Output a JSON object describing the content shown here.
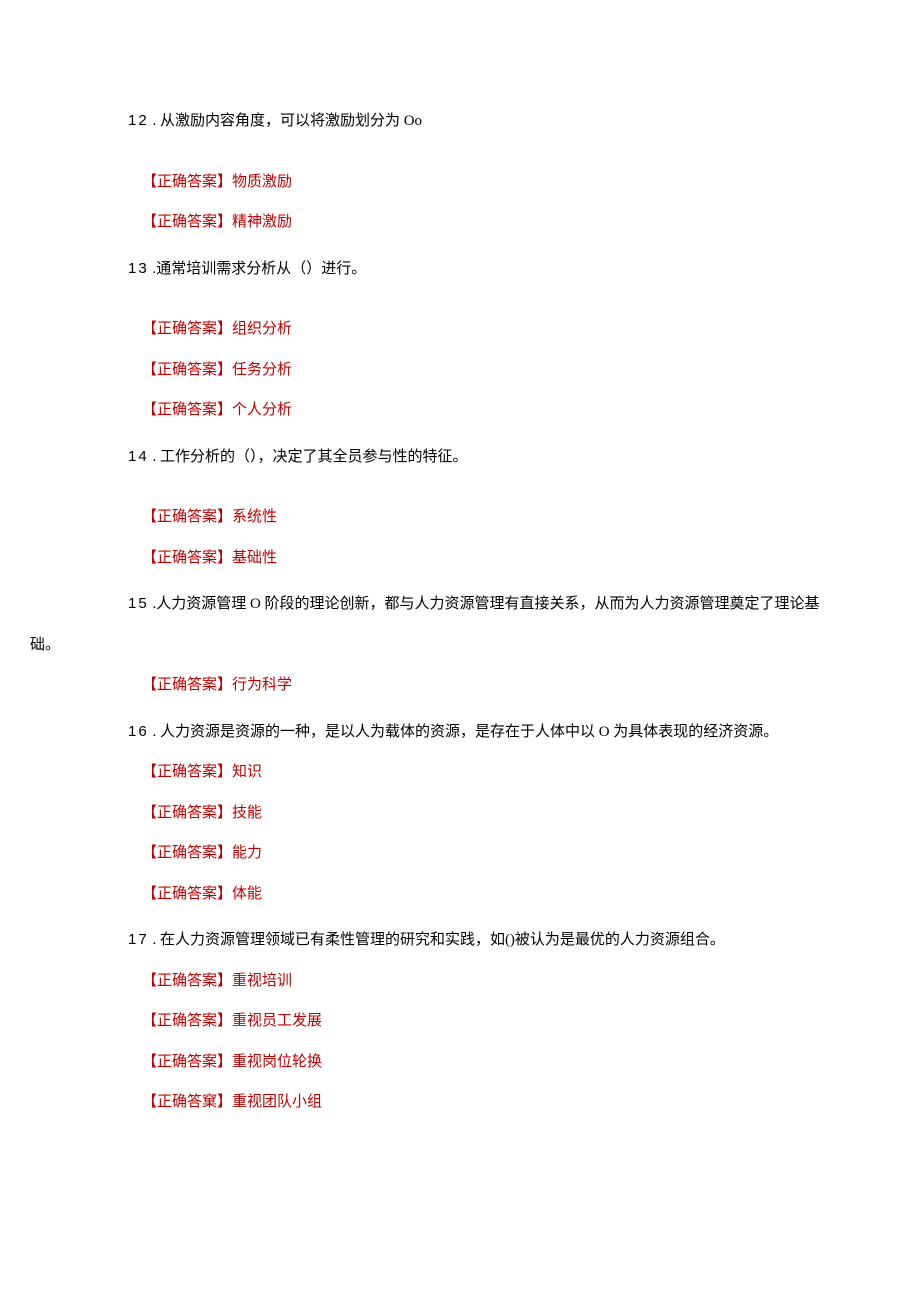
{
  "colors": {
    "question_color": "#000000",
    "answer_color": "#c00000",
    "background": "#ffffff"
  },
  "typography": {
    "font_family": "SimSun",
    "font_size": 15
  },
  "answer_label": "【正确答案】",
  "questions": [
    {
      "num": "12",
      "text": " . 从激励内容角度，可以将激励划分为 Oo",
      "answers": [
        "物质激励",
        "精神激励"
      ]
    },
    {
      "num": "13",
      "text": " .通常培训需求分析从（）进行。",
      "answers": [
        "组织分析",
        "任务分析",
        "个人分析"
      ]
    },
    {
      "num": "14",
      "text": " . 工作分析的（），决定了其全员参与性的特征。",
      "answers": [
        "系统性",
        "基础性"
      ]
    },
    {
      "num": "15",
      "text": " .人力资源管理 O 阶段的理论创新，都与人力资源管理有直接关系，从而为人力资源管理奠定了理论基",
      "text_cont": "础。",
      "answers": [
        "行为科学"
      ]
    },
    {
      "num": "16",
      "text": " . 人力资源是资源的一种，是以人为载体的资源，是存在于人体中以 O 为具体表现的经济资源。",
      "answers": [
        "知识",
        "技能",
        "能力",
        "体能"
      ]
    },
    {
      "num": "17",
      "text": " . 在人力资源管理领域已有柔性管理的研究和实践，如()被认为是最优的人力资源组合。",
      "answers": [
        "重视培训",
        "重视员工发展",
        "重视岗位轮换",
        "重视团队小组"
      ],
      "last_label": "【正确答窠】"
    }
  ]
}
